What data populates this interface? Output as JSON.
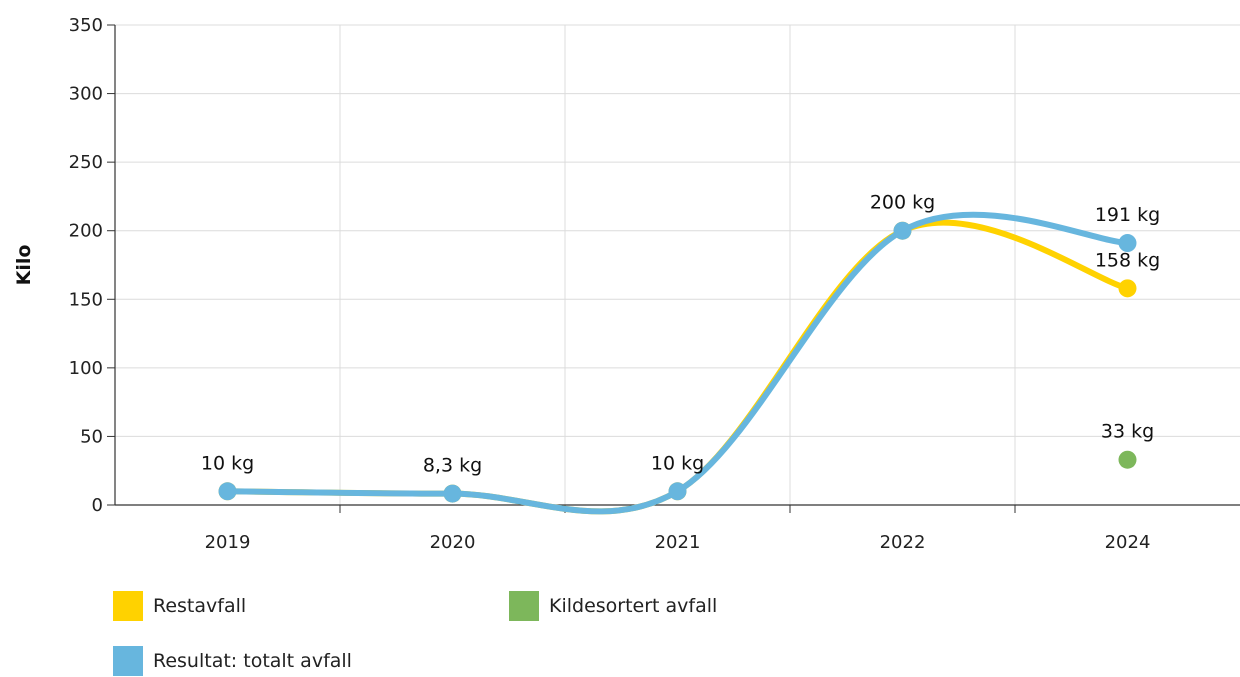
{
  "chart_data": {
    "type": "line",
    "categories": [
      "2019",
      "2020",
      "2021",
      "2022",
      "2024"
    ],
    "ylabel": "Kilo",
    "ylim": [
      0,
      350
    ],
    "yticks": [
      0,
      50,
      100,
      150,
      200,
      250,
      300,
      350
    ],
    "grid": true,
    "legend_position": "bottom-left",
    "series": [
      {
        "name": "Restavfall",
        "color": "#FFD200",
        "values": [
          10,
          8.3,
          10,
          200,
          158
        ],
        "labels": [
          "",
          "",
          "",
          "",
          "158 kg"
        ]
      },
      {
        "name": "Kildesortert avfall",
        "color": "#7DB75B",
        "values": [
          null,
          null,
          null,
          null,
          33
        ],
        "labels": [
          "",
          "",
          "",
          "",
          "33 kg"
        ]
      },
      {
        "name": "Resultat: totalt avfall",
        "color": "#67B6DE",
        "values": [
          10,
          8.3,
          10,
          200,
          191
        ],
        "labels": [
          "10 kg",
          "8,3 kg",
          "10 kg",
          "200 kg",
          "191 kg"
        ]
      }
    ]
  }
}
